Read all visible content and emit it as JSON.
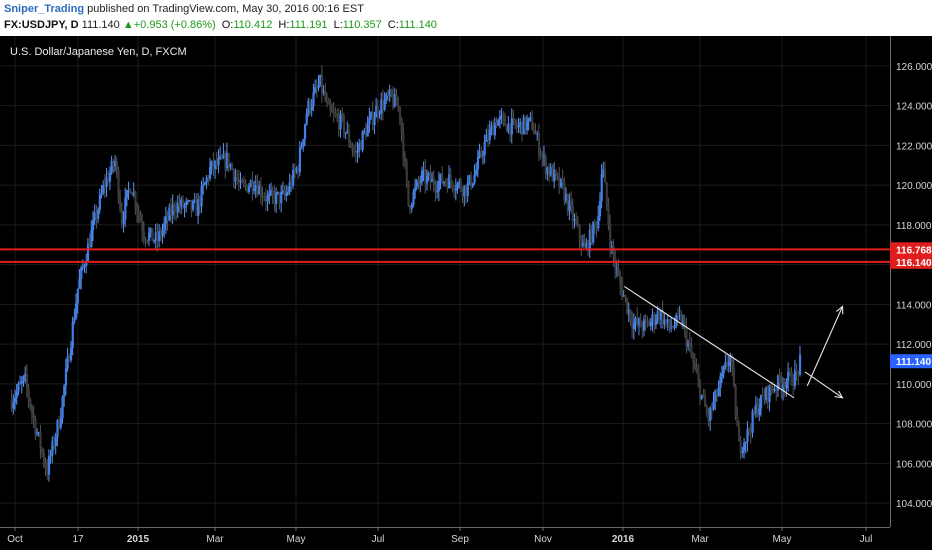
{
  "header": {
    "author": "Sniper_Trading",
    "published": "published on TradingView.com, May 30, 2016 00:16 EST",
    "symbol": "FX:USDJPY, D",
    "last": "111.140",
    "change": "+0.953 (+0.86%)",
    "open_label": "O:",
    "open": "110.412",
    "high_label": "H:",
    "high": "111.191",
    "low_label": "L:",
    "low": "110.357",
    "close_label": "C:",
    "close": "111.140"
  },
  "chart_data": {
    "type": "candlestick",
    "title": "U.S. Dollar/Japanese Yen, D, FXCM",
    "y_ticks": [
      "126.000",
      "124.000",
      "122.000",
      "120.000",
      "118.000",
      "116.000",
      "114.000",
      "112.000",
      "110.000",
      "108.000",
      "106.000",
      "104.000"
    ],
    "x_ticks": [
      "Oct",
      "17",
      "2015",
      "Mar",
      "May",
      "Jul",
      "Sep",
      "Nov",
      "2016",
      "Mar",
      "May",
      "Jul"
    ],
    "ylim": [
      102.8,
      127.5
    ],
    "horizontal_levels": [
      {
        "value": 116.768,
        "label": "116.768",
        "color": "#e01e1e"
      },
      {
        "value": 116.14,
        "label": "116.140",
        "color": "#e01e1e"
      }
    ],
    "last_price": {
      "value": 111.14,
      "label": "111.140",
      "color": "#2962ff"
    },
    "price_path": [
      [
        2014.75,
        109.2
      ],
      [
        2014.78,
        110.2
      ],
      [
        2014.8,
        108.2
      ],
      [
        2014.83,
        105.6
      ],
      [
        2014.86,
        108.4
      ],
      [
        2014.88,
        111.5
      ],
      [
        2014.9,
        114.8
      ],
      [
        2014.93,
        117.5
      ],
      [
        2014.96,
        120.0
      ],
      [
        2014.985,
        121.2
      ],
      [
        2015.0,
        118.3
      ],
      [
        2015.02,
        120.1
      ],
      [
        2015.05,
        117.6
      ],
      [
        2015.08,
        117.2
      ],
      [
        2015.12,
        119.0
      ],
      [
        2015.17,
        118.8
      ],
      [
        2015.2,
        120.8
      ],
      [
        2015.24,
        121.3
      ],
      [
        2015.27,
        119.8
      ],
      [
        2015.3,
        120.2
      ],
      [
        2015.33,
        119.3
      ],
      [
        2015.37,
        119.4
      ],
      [
        2015.4,
        121.0
      ],
      [
        2015.42,
        123.8
      ],
      [
        2015.45,
        125.1
      ],
      [
        2015.47,
        123.6
      ],
      [
        2015.5,
        123.1
      ],
      [
        2015.53,
        121.5
      ],
      [
        2015.55,
        122.6
      ],
      [
        2015.58,
        123.9
      ],
      [
        2015.61,
        124.4
      ],
      [
        2015.63,
        123.8
      ],
      [
        2015.65,
        119.0
      ],
      [
        2015.68,
        120.4
      ],
      [
        2015.71,
        120.1
      ],
      [
        2015.74,
        120.3
      ],
      [
        2015.78,
        119.8
      ],
      [
        2015.8,
        120.5
      ],
      [
        2015.82,
        121.9
      ],
      [
        2015.85,
        123.3
      ],
      [
        2015.89,
        122.9
      ],
      [
        2015.93,
        123.1
      ],
      [
        2015.96,
        121.0
      ],
      [
        2016.0,
        119.8
      ],
      [
        2016.03,
        117.9
      ],
      [
        2016.05,
        116.7
      ],
      [
        2016.08,
        118.3
      ],
      [
        2016.09,
        121.1
      ],
      [
        2016.11,
        116.8
      ],
      [
        2016.13,
        115.0
      ],
      [
        2016.16,
        113.0
      ],
      [
        2016.19,
        112.9
      ],
      [
        2016.22,
        113.6
      ],
      [
        2016.24,
        112.8
      ],
      [
        2016.27,
        113.2
      ],
      [
        2016.29,
        111.5
      ],
      [
        2016.31,
        109.8
      ],
      [
        2016.33,
        108.2
      ],
      [
        2016.35,
        109.5
      ],
      [
        2016.38,
        111.5
      ],
      [
        2016.4,
        106.8
      ],
      [
        2016.42,
        107.5
      ],
      [
        2016.44,
        108.8
      ],
      [
        2016.46,
        109.4
      ],
      [
        2016.48,
        109.9
      ],
      [
        2016.51,
        110.2
      ],
      [
        2016.53,
        110.4
      ],
      [
        2016.54,
        111.14
      ]
    ],
    "annotations": [
      {
        "type": "trendline",
        "from": [
          2016.14,
          114.9
        ],
        "to": [
          2016.525,
          109.3
        ],
        "color": "#e8e8e8"
      },
      {
        "type": "arrow",
        "from": [
          2016.555,
          109.9
        ],
        "to": [
          2016.635,
          113.9
        ],
        "color": "#e8e8e8"
      },
      {
        "type": "arrow",
        "from": [
          2016.55,
          110.6
        ],
        "to": [
          2016.635,
          109.3
        ],
        "color": "#e8e8e8"
      }
    ]
  }
}
